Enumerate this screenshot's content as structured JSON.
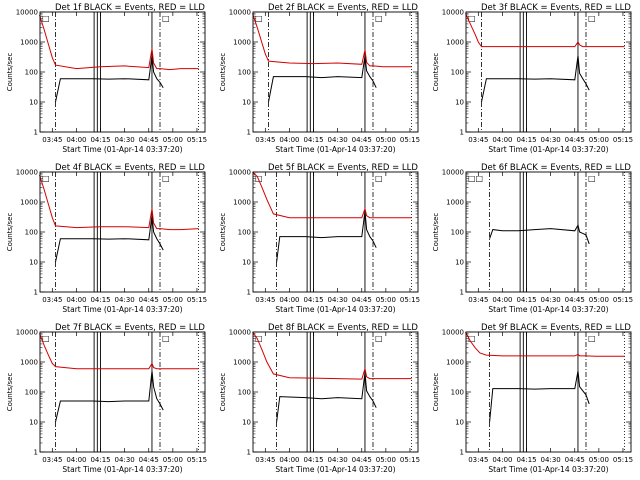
{
  "figure": {
    "xlabel": "Start Time (01-Apr-14 03:37:20)",
    "ylabel": "Counts/sec",
    "x_ticks": [
      "03:45",
      "04:00",
      "04:15",
      "04:30",
      "04:45",
      "05:00",
      "05:15"
    ],
    "y_ticks": [
      "1",
      "10",
      "100",
      "1000",
      "10000"
    ],
    "colors": {
      "events": "#000000",
      "lld": "#d40000",
      "axes": "#000000"
    }
  },
  "chart_data": [
    {
      "type": "line",
      "title": "Det 1f BLACK = Events, RED = LLD",
      "box_labels": [
        "□",
        "□"
      ],
      "ylog": true,
      "ylim": [
        1,
        10000
      ],
      "xlim": [
        "03:37:20",
        "05:20"
      ],
      "markers_solid": [
        "04:11",
        "04:13",
        "04:15",
        "04:47"
      ],
      "markers_dash": [
        "03:47",
        "04:52"
      ],
      "markers_dot": [
        "05:16"
      ],
      "series": [
        {
          "key": "events",
          "x": [
            "03:47",
            "03:50",
            "04:10",
            "04:20",
            "04:30",
            "04:45",
            "04:47",
            "04:48",
            "04:50",
            "04:52",
            "04:54"
          ],
          "values": [
            10,
            60,
            60,
            58,
            60,
            55,
            350,
            100,
            60,
            45,
            30
          ]
        },
        {
          "key": "lld",
          "x": [
            "03:37",
            "03:40",
            "03:43",
            "03:45",
            "03:47",
            "04:00",
            "04:15",
            "04:30",
            "04:45",
            "04:47",
            "04:48",
            "04:50",
            "04:52",
            "04:58",
            "05:05",
            "05:16"
          ],
          "values": [
            8000,
            2500,
            700,
            300,
            170,
            130,
            150,
            160,
            140,
            600,
            200,
            130,
            130,
            120,
            130,
            130
          ]
        }
      ]
    },
    {
      "type": "line",
      "title": "Det 2f BLACK = Events, RED = LLD",
      "box_labels": [
        "□",
        "□"
      ],
      "ylog": true,
      "ylim": [
        1,
        10000
      ],
      "xlim": [
        "03:37:20",
        "05:20"
      ],
      "markers_solid": [
        "04:11",
        "04:13",
        "04:15",
        "04:47"
      ],
      "markers_dash": [
        "03:47",
        "04:52"
      ],
      "markers_dot": [
        "05:16"
      ],
      "series": [
        {
          "key": "events",
          "x": [
            "03:47",
            "03:50",
            "04:10",
            "04:20",
            "04:30",
            "04:45",
            "04:47",
            "04:48",
            "04:50",
            "04:52",
            "04:54"
          ],
          "values": [
            10,
            70,
            70,
            65,
            70,
            65,
            350,
            110,
            70,
            50,
            30
          ]
        },
        {
          "key": "lld",
          "x": [
            "03:37",
            "03:40",
            "03:43",
            "03:45",
            "03:47",
            "04:00",
            "04:15",
            "04:30",
            "04:45",
            "04:47",
            "04:48",
            "04:50",
            "04:52",
            "04:58",
            "05:05",
            "05:16"
          ],
          "values": [
            9000,
            3000,
            900,
            400,
            230,
            200,
            190,
            200,
            180,
            550,
            210,
            160,
            160,
            150,
            150,
            150
          ]
        }
      ]
    },
    {
      "type": "line",
      "title": "Det 3f BLACK = Events, RED = LLD",
      "box_labels": [
        "□",
        "□"
      ],
      "ylog": true,
      "ylim": [
        1,
        10000
      ],
      "xlim": [
        "03:37:20",
        "05:20"
      ],
      "markers_solid": [
        "04:11",
        "04:13",
        "04:15",
        "04:47"
      ],
      "markers_dash": [
        "03:47",
        "04:52"
      ],
      "markers_dot": [
        "05:16"
      ],
      "series": [
        {
          "key": "events",
          "x": [
            "03:47",
            "03:50",
            "04:10",
            "04:20",
            "04:30",
            "04:45",
            "04:47",
            "04:48",
            "04:50",
            "04:52",
            "04:54"
          ],
          "values": [
            10,
            60,
            60,
            58,
            60,
            55,
            350,
            90,
            60,
            40,
            25
          ]
        },
        {
          "key": "lld",
          "x": [
            "03:37",
            "03:40",
            "03:43",
            "03:45",
            "03:47",
            "04:00",
            "04:15",
            "04:30",
            "04:45",
            "04:47",
            "04:48",
            "04:50",
            "04:52",
            "04:58",
            "05:05",
            "05:16"
          ],
          "values": [
            9000,
            4000,
            1800,
            1000,
            700,
            700,
            700,
            700,
            700,
            1000,
            800,
            700,
            700,
            700,
            700,
            700
          ]
        }
      ]
    },
    {
      "type": "line",
      "title": "Det 4f BLACK = Events, RED = LLD",
      "box_labels": [
        "□",
        "□"
      ],
      "ylog": true,
      "ylim": [
        1,
        10000
      ],
      "xlim": [
        "03:37:20",
        "05:20"
      ],
      "markers_solid": [
        "04:11",
        "04:13",
        "04:15",
        "04:47"
      ],
      "markers_dash": [
        "03:47",
        "04:52"
      ],
      "markers_dot": [
        "05:16"
      ],
      "series": [
        {
          "key": "events",
          "x": [
            "03:47",
            "03:50",
            "04:10",
            "04:20",
            "04:30",
            "04:45",
            "04:47",
            "04:48",
            "04:50",
            "04:52",
            "04:54"
          ],
          "values": [
            10,
            60,
            60,
            58,
            60,
            55,
            350,
            100,
            60,
            40,
            25
          ]
        },
        {
          "key": "lld",
          "x": [
            "03:37",
            "03:40",
            "03:43",
            "03:45",
            "03:47",
            "04:00",
            "04:15",
            "04:30",
            "04:45",
            "04:47",
            "04:48",
            "04:50",
            "04:52",
            "04:58",
            "05:05",
            "05:16"
          ],
          "values": [
            8000,
            2500,
            700,
            300,
            160,
            140,
            150,
            150,
            140,
            600,
            200,
            130,
            130,
            120,
            120,
            130
          ]
        }
      ]
    },
    {
      "type": "line",
      "title": "Det 5f BLACK = Events, RED = LLD",
      "box_labels": [
        "□",
        "□"
      ],
      "ylog": true,
      "ylim": [
        1,
        10000
      ],
      "xlim": [
        "03:37:20",
        "05:20"
      ],
      "markers_solid": [
        "04:11",
        "04:13",
        "04:15",
        "04:47"
      ],
      "markers_dash": [
        "03:52",
        "04:52"
      ],
      "markers_dot": [
        "05:16"
      ],
      "series": [
        {
          "key": "events",
          "x": [
            "03:52",
            "03:54",
            "04:10",
            "04:20",
            "04:30",
            "04:45",
            "04:47",
            "04:48",
            "04:50",
            "04:52",
            "04:54"
          ],
          "values": [
            10,
            70,
            70,
            65,
            70,
            70,
            500,
            120,
            70,
            50,
            30
          ]
        },
        {
          "key": "lld",
          "x": [
            "03:37",
            "03:40",
            "03:43",
            "03:46",
            "03:50",
            "04:00",
            "04:15",
            "04:30",
            "04:45",
            "04:47",
            "04:48",
            "04:50",
            "04:52",
            "04:58",
            "05:05",
            "05:16"
          ],
          "values": [
            10000,
            7000,
            3000,
            1200,
            400,
            300,
            300,
            300,
            300,
            600,
            350,
            300,
            300,
            300,
            300,
            300
          ]
        }
      ]
    },
    {
      "type": "line",
      "title": "Det 6f BLACK = Events, RED = LLD",
      "box_labels": [
        "□□",
        "□"
      ],
      "ylog": true,
      "ylim": [
        1,
        10000
      ],
      "xlim": [
        "03:37:20",
        "05:20"
      ],
      "markers_solid": [
        "04:11",
        "04:13",
        "04:15",
        "04:47"
      ],
      "markers_dash": [
        "03:52",
        "04:52"
      ],
      "markers_dot": [
        "05:16"
      ],
      "series": [
        {
          "key": "events",
          "x": [
            "03:52",
            "03:54",
            "04:00",
            "04:10",
            "04:20",
            "04:30",
            "04:45",
            "04:47",
            "04:48",
            "04:50",
            "04:52",
            "04:54"
          ],
          "values": [
            60,
            120,
            110,
            110,
            120,
            130,
            110,
            170,
            100,
            90,
            80,
            40
          ]
        }
      ]
    },
    {
      "type": "line",
      "title": "Det 7f BLACK = Events, RED = LLD",
      "box_labels": [
        "□",
        "□"
      ],
      "ylog": true,
      "ylim": [
        1,
        10000
      ],
      "xlim": [
        "03:37:20",
        "05:20"
      ],
      "markers_solid": [
        "04:11",
        "04:13",
        "04:15",
        "04:47"
      ],
      "markers_dash": [
        "03:47",
        "04:52"
      ],
      "markers_dot": [
        "05:16"
      ],
      "series": [
        {
          "key": "events",
          "x": [
            "03:47",
            "03:50",
            "04:10",
            "04:20",
            "04:30",
            "04:45",
            "04:47",
            "04:48",
            "04:50",
            "04:52",
            "04:54"
          ],
          "values": [
            10,
            50,
            50,
            48,
            50,
            50,
            500,
            150,
            60,
            40,
            25
          ]
        },
        {
          "key": "lld",
          "x": [
            "03:37",
            "03:40",
            "03:43",
            "03:45",
            "03:47",
            "04:00",
            "04:15",
            "04:30",
            "04:45",
            "04:47",
            "04:48",
            "04:50",
            "04:52",
            "04:58",
            "05:05",
            "05:16"
          ],
          "values": [
            9000,
            3500,
            1500,
            900,
            700,
            600,
            600,
            600,
            600,
            900,
            650,
            600,
            600,
            600,
            600,
            600
          ]
        }
      ]
    },
    {
      "type": "line",
      "title": "Det 8f BLACK = Events, RED = LLD",
      "box_labels": [
        "□",
        "□"
      ],
      "ylog": true,
      "ylim": [
        1,
        10000
      ],
      "xlim": [
        "03:37:20",
        "05:20"
      ],
      "markers_solid": [
        "04:11",
        "04:13",
        "04:15",
        "04:47"
      ],
      "markers_dash": [
        "03:52",
        "04:52"
      ],
      "markers_dot": [
        "05:16"
      ],
      "series": [
        {
          "key": "events",
          "x": [
            "03:52",
            "03:54",
            "04:10",
            "04:20",
            "04:30",
            "04:45",
            "04:47",
            "04:48",
            "04:50",
            "04:52",
            "04:54"
          ],
          "values": [
            10,
            70,
            65,
            60,
            65,
            60,
            450,
            110,
            70,
            50,
            30
          ]
        },
        {
          "key": "lld",
          "x": [
            "03:37",
            "03:40",
            "03:43",
            "03:46",
            "03:50",
            "04:00",
            "04:15",
            "04:30",
            "04:45",
            "04:47",
            "04:48",
            "04:50",
            "04:52",
            "04:58",
            "05:05",
            "05:16"
          ],
          "values": [
            10000,
            6000,
            2500,
            1000,
            400,
            300,
            290,
            280,
            270,
            600,
            320,
            280,
            280,
            280,
            280,
            280
          ]
        }
      ]
    },
    {
      "type": "line",
      "title": "Det 9f BLACK = Events, RED = LLD",
      "box_labels": [
        "□",
        "□"
      ],
      "ylog": true,
      "ylim": [
        1,
        10000
      ],
      "xlim": [
        "03:37:20",
        "05:20"
      ],
      "markers_solid": [
        "04:11",
        "04:13",
        "04:15",
        "04:47"
      ],
      "markers_dash": [
        "03:52",
        "04:52"
      ],
      "markers_dot": [
        "05:16"
      ],
      "series": [
        {
          "key": "events",
          "x": [
            "03:52",
            "03:54",
            "04:10",
            "04:20",
            "04:30",
            "04:45",
            "04:47",
            "04:48",
            "04:50",
            "04:52",
            "04:54"
          ],
          "values": [
            10,
            130,
            130,
            125,
            130,
            130,
            500,
            150,
            110,
            80,
            40
          ]
        },
        {
          "key": "lld",
          "x": [
            "03:37",
            "03:40",
            "03:43",
            "03:46",
            "03:50",
            "04:00",
            "04:15",
            "04:30",
            "04:45",
            "04:47",
            "04:48",
            "04:50",
            "04:52",
            "04:58",
            "05:05",
            "05:16"
          ],
          "values": [
            10000,
            5000,
            3000,
            2000,
            1700,
            1600,
            1600,
            1600,
            1600,
            1800,
            1600,
            1600,
            1600,
            1550,
            1550,
            1550
          ]
        }
      ]
    }
  ]
}
